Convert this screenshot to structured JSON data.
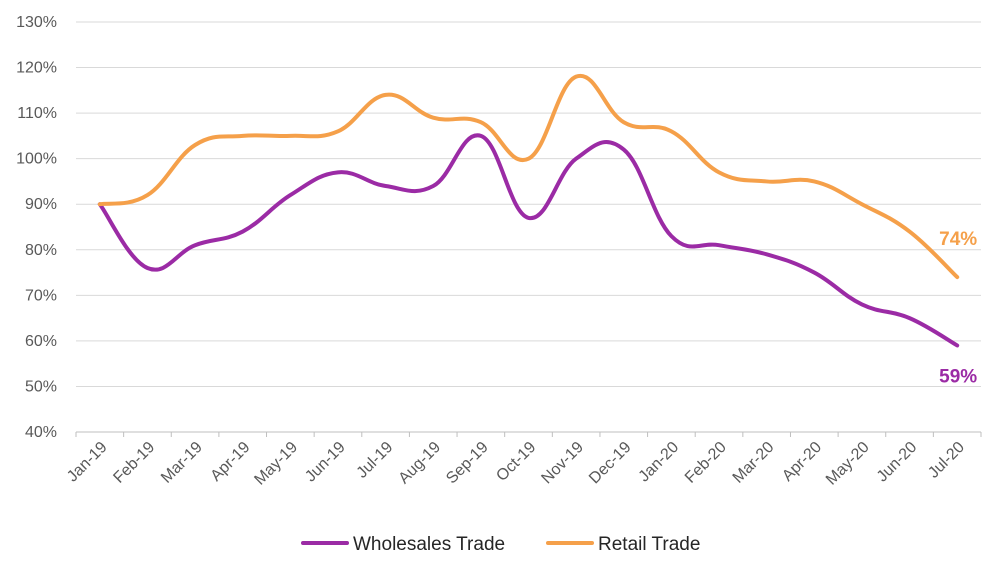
{
  "chart_data": {
    "type": "line",
    "title": "",
    "xlabel": "",
    "ylabel": "",
    "ylim": [
      40,
      130
    ],
    "y_ticks": [
      "40%",
      "50%",
      "60%",
      "70%",
      "80%",
      "90%",
      "100%",
      "110%",
      "120%",
      "130%"
    ],
    "y_tick_values": [
      40,
      50,
      60,
      70,
      80,
      90,
      100,
      110,
      120,
      130
    ],
    "grid": "horizontal",
    "smooth": true,
    "legend_position": "bottom",
    "categories": [
      "Jan-19",
      "Feb-19",
      "Mar-19",
      "Apr-19",
      "May-19",
      "Jun-19",
      "Jul-19",
      "Aug-19",
      "Sep-19",
      "Oct-19",
      "Nov-19",
      "Dec-19",
      "Jan-20",
      "Feb-20",
      "Mar-20",
      "Apr-20",
      "May-20",
      "Jun-20",
      "Jul-20"
    ],
    "series": [
      {
        "name": "Wholesales Trade",
        "color": "#9B2BA5",
        "values": [
          90,
          76,
          81,
          84,
          92,
          97,
          94,
          94,
          105,
          87,
          100,
          102,
          83,
          81,
          79,
          75,
          68,
          65,
          59
        ],
        "end_label": "59%"
      },
      {
        "name": "Retail Trade",
        "color": "#F5A04A",
        "values": [
          90,
          92,
          103,
          105,
          105,
          106,
          114,
          109,
          108,
          100,
          118,
          108,
          106,
          97,
          95,
          95,
          90,
          84,
          74
        ],
        "end_label": "74%"
      }
    ]
  }
}
